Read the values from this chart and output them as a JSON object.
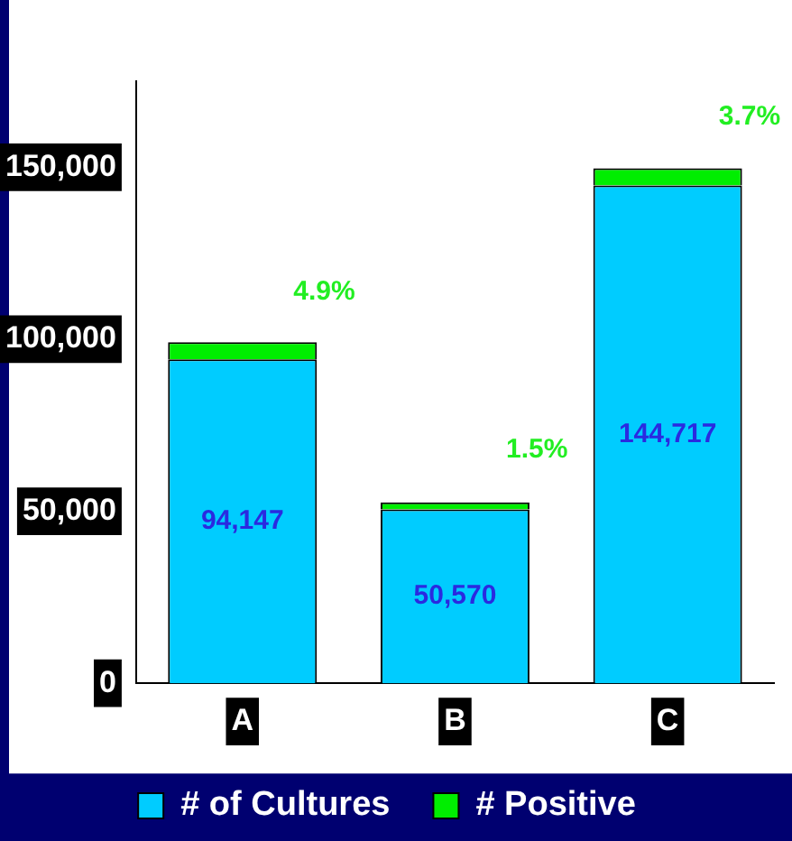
{
  "chart_data": {
    "type": "bar",
    "categories": [
      "A",
      "B",
      "C"
    ],
    "stacked": true,
    "series": [
      {
        "name": "# of Cultures",
        "color": "#00ccff",
        "values": [
          94147,
          50570,
          144717
        ],
        "value_labels": [
          "94,147",
          "50,570",
          "144,717"
        ]
      },
      {
        "name": "# Positive",
        "color": "#00ee00",
        "values": [
          5000,
          2000,
          5000
        ]
      }
    ],
    "ylim": [
      0,
      175000
    ],
    "yticks": [
      {
        "value": 0,
        "label": "0"
      },
      {
        "value": 50000,
        "label": "50,000"
      },
      {
        "value": 100000,
        "label": "100,000"
      },
      {
        "value": 150000,
        "label": "150,000"
      }
    ],
    "annotations": [
      {
        "text": "4.9%",
        "x": "A",
        "y": 99000
      },
      {
        "text": "1.5%",
        "x": "B",
        "y": 53000
      },
      {
        "text": "3.7%",
        "x": "C",
        "y": 150000
      }
    ],
    "grid": false,
    "legend": "bottom"
  }
}
